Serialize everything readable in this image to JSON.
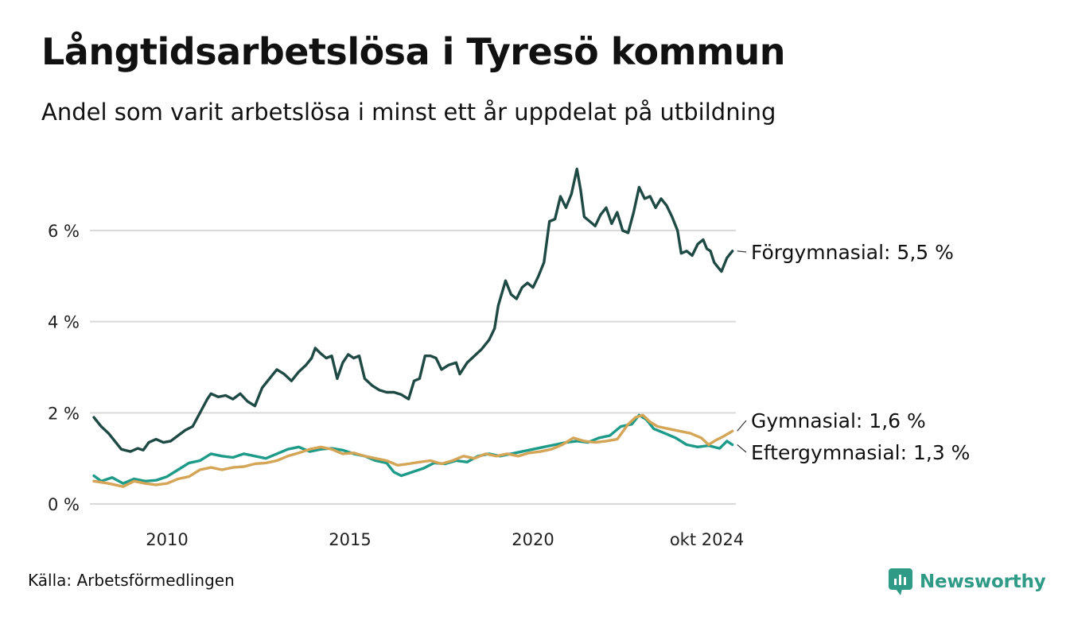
{
  "title": "Långtidsarbetslösa i Tyresö kommun",
  "subtitle": "Andel som varit arbetslösa i minst ett år uppdelat på utbildning",
  "source": "Källa: Arbetsförmedlingen",
  "brand": {
    "name": "Newsworthy",
    "icon": "newsworthy-logo-icon",
    "color": "#2f9a86"
  },
  "chart_data": {
    "type": "line",
    "title": "Långtidsarbetslösa i Tyresö kommun",
    "xlabel": "",
    "ylabel": "",
    "xlim": [
      2008.0,
      2024.75
    ],
    "ylim": [
      0,
      7.6
    ],
    "grid": true,
    "y_ticks": [
      {
        "value": 0,
        "label": "0 %"
      },
      {
        "value": 2,
        "label": "2 %"
      },
      {
        "value": 4,
        "label": "4 %"
      },
      {
        "value": 6,
        "label": "6 %"
      }
    ],
    "x_ticks": [
      {
        "value": 2010,
        "label": "2010"
      },
      {
        "value": 2015,
        "label": "2015"
      },
      {
        "value": 2020,
        "label": "2020"
      },
      {
        "value": 2024.75,
        "label": "okt 2024"
      }
    ],
    "series": [
      {
        "name": "Förgymnasial",
        "end_label": "Förgymnasial: 5,5 %",
        "color": "#1f4a44",
        "points": [
          [
            2008.0,
            1.9
          ],
          [
            2008.2,
            1.7
          ],
          [
            2008.4,
            1.55
          ],
          [
            2008.6,
            1.35
          ],
          [
            2008.75,
            1.2
          ],
          [
            2009.0,
            1.15
          ],
          [
            2009.2,
            1.22
          ],
          [
            2009.35,
            1.18
          ],
          [
            2009.5,
            1.35
          ],
          [
            2009.7,
            1.42
          ],
          [
            2009.9,
            1.35
          ],
          [
            2010.1,
            1.38
          ],
          [
            2010.3,
            1.5
          ],
          [
            2010.5,
            1.62
          ],
          [
            2010.7,
            1.7
          ],
          [
            2010.9,
            2.0
          ],
          [
            2011.1,
            2.3
          ],
          [
            2011.2,
            2.42
          ],
          [
            2011.4,
            2.35
          ],
          [
            2011.6,
            2.38
          ],
          [
            2011.8,
            2.3
          ],
          [
            2012.0,
            2.42
          ],
          [
            2012.2,
            2.25
          ],
          [
            2012.4,
            2.15
          ],
          [
            2012.6,
            2.55
          ],
          [
            2012.8,
            2.75
          ],
          [
            2013.0,
            2.95
          ],
          [
            2013.2,
            2.85
          ],
          [
            2013.4,
            2.7
          ],
          [
            2013.6,
            2.9
          ],
          [
            2013.8,
            3.05
          ],
          [
            2013.95,
            3.2
          ],
          [
            2014.05,
            3.42
          ],
          [
            2014.2,
            3.3
          ],
          [
            2014.35,
            3.2
          ],
          [
            2014.5,
            3.25
          ],
          [
            2014.65,
            2.75
          ],
          [
            2014.8,
            3.1
          ],
          [
            2014.95,
            3.28
          ],
          [
            2015.1,
            3.2
          ],
          [
            2015.25,
            3.25
          ],
          [
            2015.4,
            2.75
          ],
          [
            2015.6,
            2.6
          ],
          [
            2015.8,
            2.5
          ],
          [
            2016.0,
            2.45
          ],
          [
            2016.2,
            2.45
          ],
          [
            2016.4,
            2.4
          ],
          [
            2016.6,
            2.3
          ],
          [
            2016.75,
            2.7
          ],
          [
            2016.9,
            2.75
          ],
          [
            2017.05,
            3.25
          ],
          [
            2017.2,
            3.25
          ],
          [
            2017.35,
            3.2
          ],
          [
            2017.5,
            2.95
          ],
          [
            2017.7,
            3.05
          ],
          [
            2017.9,
            3.1
          ],
          [
            2018.0,
            2.85
          ],
          [
            2018.2,
            3.1
          ],
          [
            2018.4,
            3.25
          ],
          [
            2018.6,
            3.4
          ],
          [
            2018.8,
            3.6
          ],
          [
            2018.95,
            3.85
          ],
          [
            2019.05,
            4.35
          ],
          [
            2019.25,
            4.9
          ],
          [
            2019.4,
            4.6
          ],
          [
            2019.55,
            4.5
          ],
          [
            2019.7,
            4.75
          ],
          [
            2019.85,
            4.85
          ],
          [
            2020.0,
            4.75
          ],
          [
            2020.15,
            5.0
          ],
          [
            2020.3,
            5.3
          ],
          [
            2020.45,
            6.2
          ],
          [
            2020.6,
            6.25
          ],
          [
            2020.75,
            6.75
          ],
          [
            2020.9,
            6.5
          ],
          [
            2021.05,
            6.8
          ],
          [
            2021.2,
            7.35
          ],
          [
            2021.3,
            6.9
          ],
          [
            2021.4,
            6.3
          ],
          [
            2021.55,
            6.2
          ],
          [
            2021.7,
            6.1
          ],
          [
            2021.85,
            6.35
          ],
          [
            2022.0,
            6.5
          ],
          [
            2022.15,
            6.15
          ],
          [
            2022.3,
            6.4
          ],
          [
            2022.45,
            6.0
          ],
          [
            2022.6,
            5.95
          ],
          [
            2022.75,
            6.4
          ],
          [
            2022.9,
            6.95
          ],
          [
            2023.05,
            6.7
          ],
          [
            2023.2,
            6.75
          ],
          [
            2023.35,
            6.5
          ],
          [
            2023.5,
            6.7
          ],
          [
            2023.65,
            6.55
          ],
          [
            2023.8,
            6.3
          ],
          [
            2023.95,
            6.0
          ],
          [
            2024.05,
            5.5
          ],
          [
            2024.2,
            5.55
          ],
          [
            2024.35,
            5.45
          ],
          [
            2024.5,
            5.7
          ],
          [
            2024.65,
            5.8
          ],
          [
            2024.75,
            5.6
          ],
          [
            2024.85,
            5.55
          ],
          [
            2024.95,
            5.3
          ],
          [
            2025.05,
            5.2
          ],
          [
            2025.15,
            5.1
          ],
          [
            2025.3,
            5.4
          ],
          [
            2025.45,
            5.55
          ]
        ]
      },
      {
        "name": "Gymnasial",
        "end_label": "Gymnasial: 1,6 %",
        "color": "#d4a556",
        "points": [
          [
            2008.0,
            0.5
          ],
          [
            2008.4,
            0.45
          ],
          [
            2008.8,
            0.38
          ],
          [
            2009.1,
            0.5
          ],
          [
            2009.4,
            0.45
          ],
          [
            2009.7,
            0.42
          ],
          [
            2010.0,
            0.45
          ],
          [
            2010.3,
            0.55
          ],
          [
            2010.6,
            0.6
          ],
          [
            2010.9,
            0.75
          ],
          [
            2011.2,
            0.8
          ],
          [
            2011.5,
            0.75
          ],
          [
            2011.8,
            0.8
          ],
          [
            2012.1,
            0.82
          ],
          [
            2012.4,
            0.88
          ],
          [
            2012.7,
            0.9
          ],
          [
            2013.0,
            0.95
          ],
          [
            2013.3,
            1.05
          ],
          [
            2013.6,
            1.12
          ],
          [
            2013.9,
            1.2
          ],
          [
            2014.2,
            1.25
          ],
          [
            2014.5,
            1.2
          ],
          [
            2014.8,
            1.1
          ],
          [
            2015.1,
            1.12
          ],
          [
            2015.4,
            1.05
          ],
          [
            2015.7,
            1.0
          ],
          [
            2016.0,
            0.95
          ],
          [
            2016.3,
            0.85
          ],
          [
            2016.6,
            0.88
          ],
          [
            2016.9,
            0.92
          ],
          [
            2017.2,
            0.95
          ],
          [
            2017.5,
            0.88
          ],
          [
            2017.8,
            0.95
          ],
          [
            2018.1,
            1.05
          ],
          [
            2018.4,
            1.0
          ],
          [
            2018.7,
            1.1
          ],
          [
            2019.0,
            1.05
          ],
          [
            2019.3,
            1.1
          ],
          [
            2019.6,
            1.05
          ],
          [
            2019.9,
            1.12
          ],
          [
            2020.2,
            1.15
          ],
          [
            2020.5,
            1.2
          ],
          [
            2020.8,
            1.3
          ],
          [
            2021.1,
            1.45
          ],
          [
            2021.4,
            1.38
          ],
          [
            2021.7,
            1.35
          ],
          [
            2022.0,
            1.38
          ],
          [
            2022.3,
            1.42
          ],
          [
            2022.6,
            1.75
          ],
          [
            2022.8,
            1.9
          ],
          [
            2023.0,
            1.95
          ],
          [
            2023.2,
            1.8
          ],
          [
            2023.4,
            1.7
          ],
          [
            2023.7,
            1.65
          ],
          [
            2024.0,
            1.6
          ],
          [
            2024.3,
            1.55
          ],
          [
            2024.6,
            1.45
          ],
          [
            2024.8,
            1.3
          ],
          [
            2025.0,
            1.4
          ],
          [
            2025.2,
            1.48
          ],
          [
            2025.45,
            1.6
          ]
        ]
      },
      {
        "name": "Eftergymnasial",
        "end_label": "Eftergymnasial: 1,3 %",
        "color": "#1e9a88",
        "points": [
          [
            2008.0,
            0.62
          ],
          [
            2008.2,
            0.5
          ],
          [
            2008.5,
            0.58
          ],
          [
            2008.8,
            0.45
          ],
          [
            2009.1,
            0.55
          ],
          [
            2009.4,
            0.5
          ],
          [
            2009.7,
            0.52
          ],
          [
            2010.0,
            0.6
          ],
          [
            2010.3,
            0.75
          ],
          [
            2010.6,
            0.9
          ],
          [
            2010.9,
            0.95
          ],
          [
            2011.2,
            1.1
          ],
          [
            2011.5,
            1.05
          ],
          [
            2011.8,
            1.02
          ],
          [
            2012.1,
            1.1
          ],
          [
            2012.4,
            1.05
          ],
          [
            2012.7,
            1.0
          ],
          [
            2013.0,
            1.1
          ],
          [
            2013.3,
            1.2
          ],
          [
            2013.6,
            1.25
          ],
          [
            2013.9,
            1.15
          ],
          [
            2014.2,
            1.2
          ],
          [
            2014.5,
            1.22
          ],
          [
            2014.8,
            1.18
          ],
          [
            2015.1,
            1.1
          ],
          [
            2015.4,
            1.05
          ],
          [
            2015.7,
            0.95
          ],
          [
            2016.0,
            0.9
          ],
          [
            2016.2,
            0.7
          ],
          [
            2016.4,
            0.62
          ],
          [
            2016.7,
            0.7
          ],
          [
            2017.0,
            0.78
          ],
          [
            2017.3,
            0.9
          ],
          [
            2017.6,
            0.88
          ],
          [
            2017.9,
            0.95
          ],
          [
            2018.2,
            0.92
          ],
          [
            2018.5,
            1.05
          ],
          [
            2018.8,
            1.1
          ],
          [
            2019.1,
            1.05
          ],
          [
            2019.4,
            1.1
          ],
          [
            2019.7,
            1.15
          ],
          [
            2020.0,
            1.2
          ],
          [
            2020.3,
            1.25
          ],
          [
            2020.6,
            1.3
          ],
          [
            2020.9,
            1.35
          ],
          [
            2021.2,
            1.38
          ],
          [
            2021.5,
            1.35
          ],
          [
            2021.8,
            1.45
          ],
          [
            2022.1,
            1.5
          ],
          [
            2022.4,
            1.7
          ],
          [
            2022.7,
            1.75
          ],
          [
            2022.9,
            1.95
          ],
          [
            2023.1,
            1.85
          ],
          [
            2023.3,
            1.65
          ],
          [
            2023.6,
            1.55
          ],
          [
            2023.9,
            1.45
          ],
          [
            2024.2,
            1.3
          ],
          [
            2024.5,
            1.25
          ],
          [
            2024.8,
            1.28
          ],
          [
            2025.1,
            1.22
          ],
          [
            2025.3,
            1.38
          ],
          [
            2025.45,
            1.3
          ]
        ]
      }
    ]
  }
}
